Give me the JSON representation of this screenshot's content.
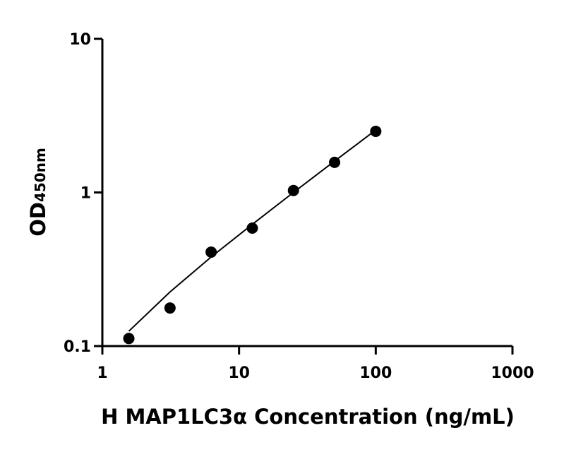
{
  "chart_data": {
    "type": "scatter",
    "xlabel": "H MAP1LC3α Concentration (ng/mL)",
    "ylabel": "OD",
    "ylabel_subscript": "450nm",
    "x": [
      1.5625,
      3.125,
      6.25,
      12.5,
      25,
      50,
      100
    ],
    "series": [
      {
        "style": "points",
        "color": "#000000",
        "values": [
          0.112,
          0.177,
          0.409,
          0.586,
          1.03,
          1.57,
          2.5
        ]
      },
      {
        "style": "line",
        "color": "#000000",
        "values": [
          0.125,
          0.225,
          0.38,
          0.62,
          1.0,
          1.6,
          2.55
        ]
      }
    ],
    "xscale": "log",
    "yscale": "log",
    "xlim": [
      1,
      1000
    ],
    "ylim": [
      0.1,
      10
    ],
    "xticks": [
      1,
      10,
      100,
      1000
    ],
    "yticks": [
      0.1,
      1,
      10
    ],
    "grid": false
  }
}
